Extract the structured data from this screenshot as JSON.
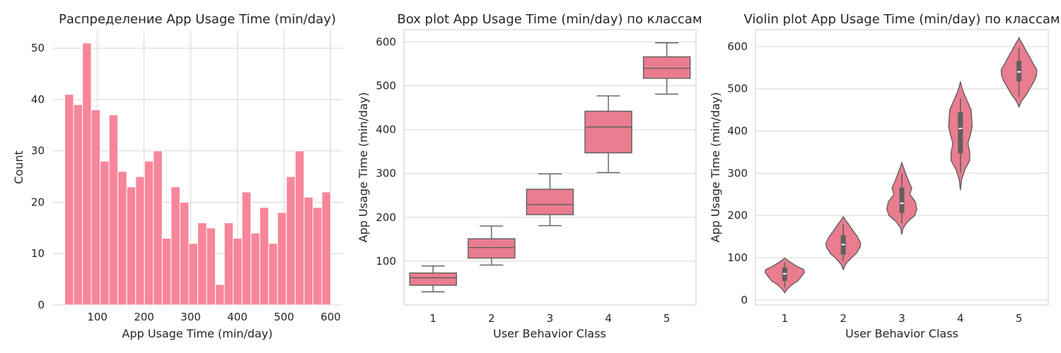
{
  "colors": {
    "bar": "#f7869b",
    "box": "#e97d8f",
    "line": "#5f5f5f",
    "grid": "#d6d6d6",
    "spine": "#cccccc",
    "median_dot": "#ffffff"
  },
  "chart_data": [
    {
      "type": "bar",
      "subtype": "histogram",
      "title": "Распределение App Usage Time (min/day)",
      "xlabel": "App Usage Time (min/day)",
      "ylabel": "Count",
      "xlim": [
        5,
        625
      ],
      "ylim": [
        0,
        53.6
      ],
      "xticks": [
        100,
        200,
        300,
        400,
        500,
        600
      ],
      "yticks": [
        0,
        10,
        20,
        30,
        40,
        50
      ],
      "bin_start": 30,
      "bin_width": 19,
      "values": [
        41,
        39,
        51,
        38,
        28,
        37,
        26,
        23,
        25,
        28,
        30,
        13,
        23,
        20,
        12,
        16,
        15,
        4,
        16,
        13,
        22,
        14,
        19,
        12,
        18,
        25,
        30,
        21,
        19,
        22
      ],
      "grid": true
    },
    {
      "type": "box",
      "title": "Box plot App Usage Time (min/day) по классам",
      "xlabel": "User Behavior Class",
      "ylabel": "App Usage Time (min/day)",
      "categories": [
        "1",
        "2",
        "3",
        "4",
        "5"
      ],
      "ylim": [
        0,
        628
      ],
      "yticks": [
        100,
        200,
        300,
        400,
        500,
        600
      ],
      "boxes": [
        {
          "min": 30,
          "q1": 45,
          "median": 62,
          "q3": 73,
          "max": 89
        },
        {
          "min": 91,
          "q1": 107,
          "median": 131,
          "q3": 151,
          "max": 180
        },
        {
          "min": 181,
          "q1": 206,
          "median": 229,
          "q3": 264,
          "max": 299
        },
        {
          "min": 302,
          "q1": 347,
          "median": 406,
          "q3": 442,
          "max": 477
        },
        {
          "min": 481,
          "q1": 517,
          "median": 540,
          "q3": 566,
          "max": 598
        }
      ],
      "grid": true
    },
    {
      "type": "violin",
      "title": "Violin plot App Usage Time (min/day) по классам",
      "xlabel": "User Behavior Class",
      "ylabel": "App Usage Time (min/day)",
      "categories": [
        "1",
        "2",
        "3",
        "4",
        "5"
      ],
      "ylim": [
        -12,
        640
      ],
      "yticks": [
        0,
        100,
        200,
        300,
        400,
        500,
        600
      ],
      "violins": [
        {
          "min": 17,
          "max": 99,
          "q1": 45,
          "median": 62,
          "q3": 77,
          "whisker_low": 30,
          "whisker_high": 89,
          "profile": [
            [
              17,
              0.0
            ],
            [
              25,
              0.1
            ],
            [
              35,
              0.28
            ],
            [
              45,
              0.56
            ],
            [
              55,
              0.7
            ],
            [
              65,
              0.84
            ],
            [
              72,
              0.81
            ],
            [
              80,
              0.5
            ],
            [
              90,
              0.22
            ],
            [
              99,
              0.0
            ]
          ]
        },
        {
          "min": 72,
          "max": 197,
          "q1": 107,
          "median": 131,
          "q3": 153,
          "whisker_low": 91,
          "whisker_high": 180,
          "profile": [
            [
              72,
              0.0
            ],
            [
              85,
              0.1
            ],
            [
              100,
              0.35
            ],
            [
              110,
              0.55
            ],
            [
              125,
              0.72
            ],
            [
              135,
              0.74
            ],
            [
              150,
              0.6
            ],
            [
              165,
              0.4
            ],
            [
              180,
              0.22
            ],
            [
              190,
              0.08
            ],
            [
              197,
              0.0
            ]
          ]
        },
        {
          "min": 155,
          "max": 325,
          "q1": 206,
          "median": 229,
          "q3": 266,
          "whisker_low": 181,
          "whisker_high": 299,
          "profile": [
            [
              155,
              0.0
            ],
            [
              170,
              0.05
            ],
            [
              185,
              0.24
            ],
            [
              200,
              0.55
            ],
            [
              215,
              0.64
            ],
            [
              232,
              0.58
            ],
            [
              250,
              0.34
            ],
            [
              265,
              0.42
            ],
            [
              280,
              0.3
            ],
            [
              300,
              0.16
            ],
            [
              315,
              0.06
            ],
            [
              325,
              0.0
            ]
          ]
        },
        {
          "min": 260,
          "max": 517,
          "q1": 347,
          "median": 406,
          "q3": 444,
          "whisker_low": 302,
          "whisker_high": 477,
          "profile": [
            [
              260,
              0.0
            ],
            [
              285,
              0.05
            ],
            [
              310,
              0.2
            ],
            [
              330,
              0.4
            ],
            [
              350,
              0.4
            ],
            [
              370,
              0.32
            ],
            [
              390,
              0.42
            ],
            [
              410,
              0.5
            ],
            [
              430,
              0.48
            ],
            [
              450,
              0.46
            ],
            [
              470,
              0.3
            ],
            [
              490,
              0.14
            ],
            [
              505,
              0.05
            ],
            [
              517,
              0.0
            ]
          ]
        },
        {
          "min": 457,
          "max": 621,
          "q1": 518,
          "median": 540,
          "q3": 566,
          "whisker_low": 481,
          "whisker_high": 598,
          "profile": [
            [
              457,
              0.0
            ],
            [
              470,
              0.1
            ],
            [
              485,
              0.3
            ],
            [
              500,
              0.46
            ],
            [
              515,
              0.62
            ],
            [
              530,
              0.74
            ],
            [
              545,
              0.76
            ],
            [
              560,
              0.6
            ],
            [
              575,
              0.46
            ],
            [
              590,
              0.3
            ],
            [
              605,
              0.16
            ],
            [
              615,
              0.05
            ],
            [
              621,
              0.0
            ]
          ]
        }
      ],
      "grid": true
    }
  ]
}
